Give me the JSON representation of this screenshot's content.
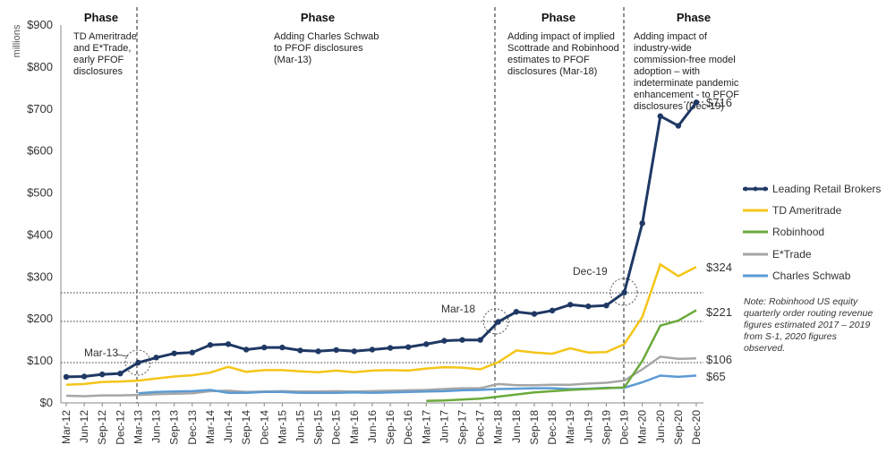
{
  "chart_data": {
    "type": "line",
    "ylabel": "millions",
    "ylim": [
      0,
      900
    ],
    "yticks": [
      "$0",
      "$100",
      "$200",
      "$300",
      "$400",
      "$500",
      "$600",
      "$700",
      "$800",
      "$900"
    ],
    "x_labels": [
      "Mar-12",
      "Jun-12",
      "Sep-12",
      "Dec-12",
      "Mar-13",
      "Jun-13",
      "Sep-13",
      "Dec-13",
      "Mar-14",
      "Jun-14",
      "Sep-14",
      "Dec-14",
      "Mar-15",
      "Jun-15",
      "Sep-15",
      "Dec-15",
      "Mar-16",
      "Jun-16",
      "Sep-16",
      "Dec-16",
      "Mar-17",
      "Jun-17",
      "Sep-17",
      "Dec-17",
      "Mar-18",
      "Jun-18",
      "Sep-18",
      "Dec-18",
      "Mar-19",
      "Jun-19",
      "Sep-19",
      "Dec-19",
      "Mar-20",
      "Jun-20",
      "Sep-20",
      "Dec-20"
    ],
    "series": [
      {
        "name": "Leading Retail Brokers",
        "color": "#1f3864",
        "markers": true,
        "values": [
          62,
          63,
          68,
          70,
          96,
          108,
          118,
          120,
          138,
          140,
          127,
          132,
          132,
          125,
          123,
          126,
          123,
          127,
          131,
          133,
          140,
          148,
          150,
          150,
          193,
          217,
          212,
          220,
          234,
          230,
          232,
          263,
          428,
          683,
          660,
          716
        ]
      },
      {
        "name": "TD Ameritrade",
        "color": "#f5c518",
        "markers": false,
        "values": [
          43,
          45,
          50,
          51,
          53,
          58,
          63,
          66,
          72,
          86,
          74,
          78,
          78,
          75,
          73,
          77,
          73,
          77,
          78,
          77,
          82,
          85,
          84,
          80,
          97,
          125,
          120,
          117,
          130,
          120,
          121,
          140,
          205,
          330,
          302,
          324
        ]
      },
      {
        "name": "Robinhood",
        "color": "#6aaa3b",
        "markers": false,
        "values": [
          null,
          null,
          null,
          null,
          null,
          null,
          null,
          null,
          null,
          null,
          null,
          null,
          null,
          null,
          null,
          null,
          null,
          null,
          null,
          null,
          5,
          6,
          8,
          10,
          15,
          20,
          25,
          28,
          31,
          33,
          35,
          37,
          100,
          184,
          196,
          221
        ]
      },
      {
        "name": "E*Trade",
        "color": "#a6a6a6",
        "markers": false,
        "values": [
          17,
          16,
          18,
          18,
          19,
          21,
          22,
          23,
          28,
          29,
          26,
          27,
          28,
          27,
          27,
          28,
          27,
          28,
          29,
          30,
          31,
          33,
          35,
          35,
          45,
          42,
          42,
          43,
          43,
          46,
          48,
          53,
          80,
          110,
          105,
          106
        ]
      },
      {
        "name": "Charles Schwab",
        "color": "#5b9bd5",
        "markers": false,
        "values": [
          null,
          null,
          null,
          null,
          23,
          26,
          27,
          28,
          31,
          24,
          24,
          26,
          26,
          24,
          24,
          24,
          25,
          24,
          25,
          26,
          27,
          28,
          30,
          31,
          33,
          34,
          35,
          35,
          33,
          34,
          36,
          36,
          49,
          65,
          62,
          65
        ]
      }
    ],
    "end_labels": [
      "$716",
      "$324",
      "$221",
      "$106",
      "$65"
    ],
    "callouts": [
      "Mar-13",
      "Mar-18",
      "Dec-19"
    ],
    "phases": [
      {
        "title": "Phase",
        "text": "TD Ameritrade and E*Trade, early PFOF disclosures"
      },
      {
        "title": "Phase",
        "text": "Adding Charles Schwab to PFOF disclosures (Mar-13)"
      },
      {
        "title": "Phase",
        "text": "Adding impact of implied Scottrade and Robinhood estimates to PFOF disclosures (Mar-18)"
      },
      {
        "title": "Phase",
        "text": "Adding impact of industry-wide commission-free model adoption – with indeterminate pandemic enhancement - to PFOF disclosures (Dec-19)"
      }
    ],
    "note": "Note: Robinhood US equity quarterly order routing revenue figures estimated 2017 – 2019 from S-1, 2020 figures observed."
  }
}
